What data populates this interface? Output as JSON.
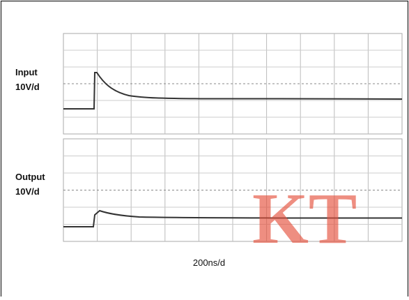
{
  "panels": [
    {
      "label": "Input",
      "scale": "10V/d"
    },
    {
      "label": "Output",
      "scale": "10V/d"
    }
  ],
  "time_scale": "200ns/d",
  "watermark": "KT"
}
